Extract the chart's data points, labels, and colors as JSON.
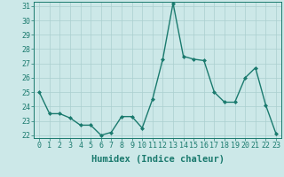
{
  "x": [
    0,
    1,
    2,
    3,
    4,
    5,
    6,
    7,
    8,
    9,
    10,
    11,
    12,
    13,
    14,
    15,
    16,
    17,
    18,
    19,
    20,
    21,
    22,
    23
  ],
  "y": [
    25.0,
    23.5,
    23.5,
    23.2,
    22.7,
    22.7,
    22.0,
    22.2,
    23.3,
    23.3,
    22.5,
    24.5,
    27.3,
    31.2,
    27.5,
    27.3,
    27.2,
    25.0,
    24.3,
    24.3,
    26.0,
    26.7,
    24.1,
    22.1
  ],
  "ylim_min": 21.8,
  "ylim_max": 31.3,
  "yticks": [
    22,
    23,
    24,
    25,
    26,
    27,
    28,
    29,
    30,
    31
  ],
  "xticks": [
    0,
    1,
    2,
    3,
    4,
    5,
    6,
    7,
    8,
    9,
    10,
    11,
    12,
    13,
    14,
    15,
    16,
    17,
    18,
    19,
    20,
    21,
    22,
    23
  ],
  "xlabel": "Humidex (Indice chaleur)",
  "line_color": "#1a7a6e",
  "marker": "D",
  "marker_size": 2.0,
  "linewidth": 1.0,
  "bg_color": "#cce8e8",
  "grid_color": "#aacfcf",
  "xlabel_fontsize": 7.5,
  "tick_fontsize": 6.0,
  "font_family": "monospace"
}
